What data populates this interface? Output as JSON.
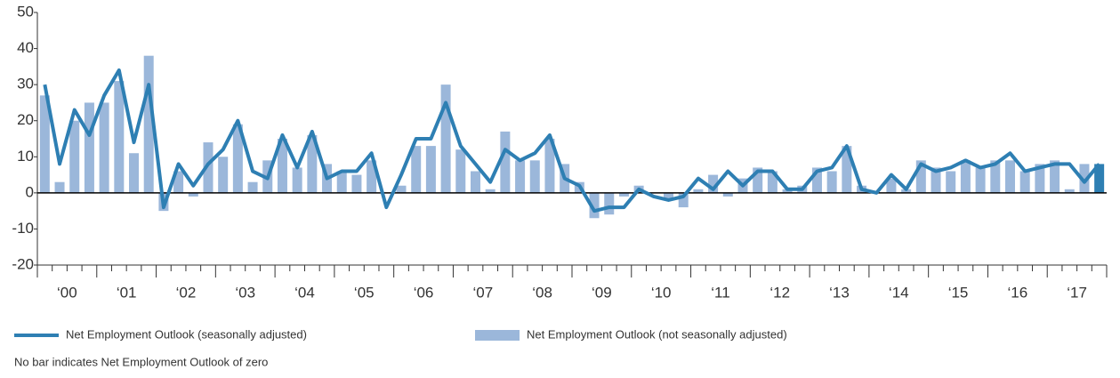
{
  "chart_data": {
    "type": "bar-line",
    "categories": [
      null,
      "‘00",
      null,
      null,
      null,
      "‘01",
      null,
      null,
      null,
      "‘02",
      null,
      null,
      null,
      "‘03",
      null,
      null,
      null,
      "‘04",
      null,
      null,
      null,
      "‘05",
      null,
      null,
      null,
      "‘06",
      null,
      null,
      null,
      "‘07",
      null,
      null,
      null,
      "‘08",
      null,
      null,
      null,
      "‘09",
      null,
      null,
      null,
      "‘10",
      null,
      null,
      null,
      "‘11",
      null,
      null,
      null,
      "‘12",
      null,
      null,
      null,
      "‘13",
      null,
      null,
      null,
      "‘14",
      null,
      null,
      null,
      "‘15",
      null,
      null,
      null,
      "‘16",
      null,
      null,
      null,
      "‘17",
      null,
      null
    ],
    "series": [
      {
        "name": "Net Employment Outlook (seasonally adjusted)",
        "kind": "line",
        "color": "#2e7fb3",
        "values": [
          30,
          8,
          23,
          16,
          27,
          34,
          14,
          30,
          -4,
          8,
          2,
          8,
          12,
          20,
          6,
          4,
          16,
          7,
          17,
          4,
          6,
          6,
          11,
          -4,
          5,
          15,
          15,
          25,
          13,
          8,
          3,
          12,
          9,
          11,
          16,
          4,
          2,
          -5,
          -4,
          -4,
          1,
          -1,
          -2,
          -1,
          4,
          1,
          6,
          2,
          6,
          6,
          1,
          1,
          6,
          7,
          13,
          1,
          0,
          5,
          1,
          8,
          6,
          7,
          9,
          7,
          8,
          11,
          6,
          7,
          8,
          8,
          3,
          8
        ]
      },
      {
        "name": "Net Employment Outlook (not seasonally adjusted)",
        "kind": "bar",
        "color": "#9bb7da",
        "highlight_color": "#2e7fb3",
        "values": [
          27,
          3,
          20,
          25,
          25,
          31,
          11,
          38,
          -5,
          6,
          -1,
          14,
          10,
          19,
          3,
          9,
          15,
          7,
          16,
          8,
          6,
          5,
          9,
          0,
          2,
          13,
          13,
          30,
          12,
          6,
          1,
          17,
          9,
          9,
          15,
          8,
          3,
          -7,
          -6,
          -1,
          2,
          0,
          -2,
          -4,
          1,
          5,
          -1,
          4,
          7,
          6,
          1,
          2,
          7,
          6,
          13,
          2,
          0,
          4,
          1,
          9,
          7,
          6,
          9,
          7,
          9,
          9,
          6,
          8,
          9,
          1,
          8,
          8
        ]
      }
    ],
    "ylim": [
      -20,
      50
    ],
    "yticks": [
      -20,
      -10,
      0,
      10,
      20,
      30,
      40,
      50
    ],
    "note": "No bar indicates Net Employment Outlook of zero"
  }
}
